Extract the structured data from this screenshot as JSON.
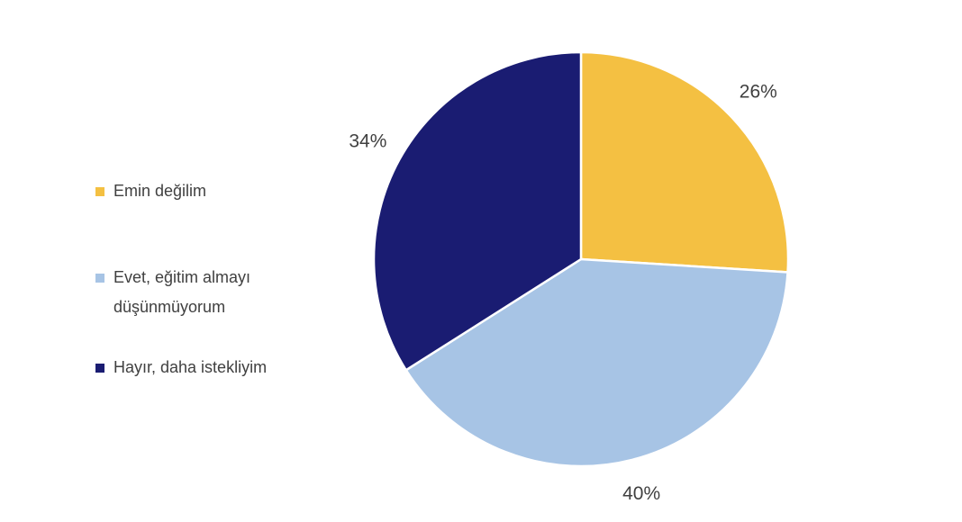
{
  "chart_data": {
    "type": "pie",
    "categories": [
      "Emin değilim",
      "Evet, eğitim almayı düşünmüyorum",
      "Hayır, daha istekliyim"
    ],
    "values": [
      26,
      40,
      34
    ],
    "value_labels": [
      "26%",
      "40%",
      "34%"
    ],
    "colors": [
      "#f4c042",
      "#a7c4e5",
      "#1a1c72"
    ]
  }
}
